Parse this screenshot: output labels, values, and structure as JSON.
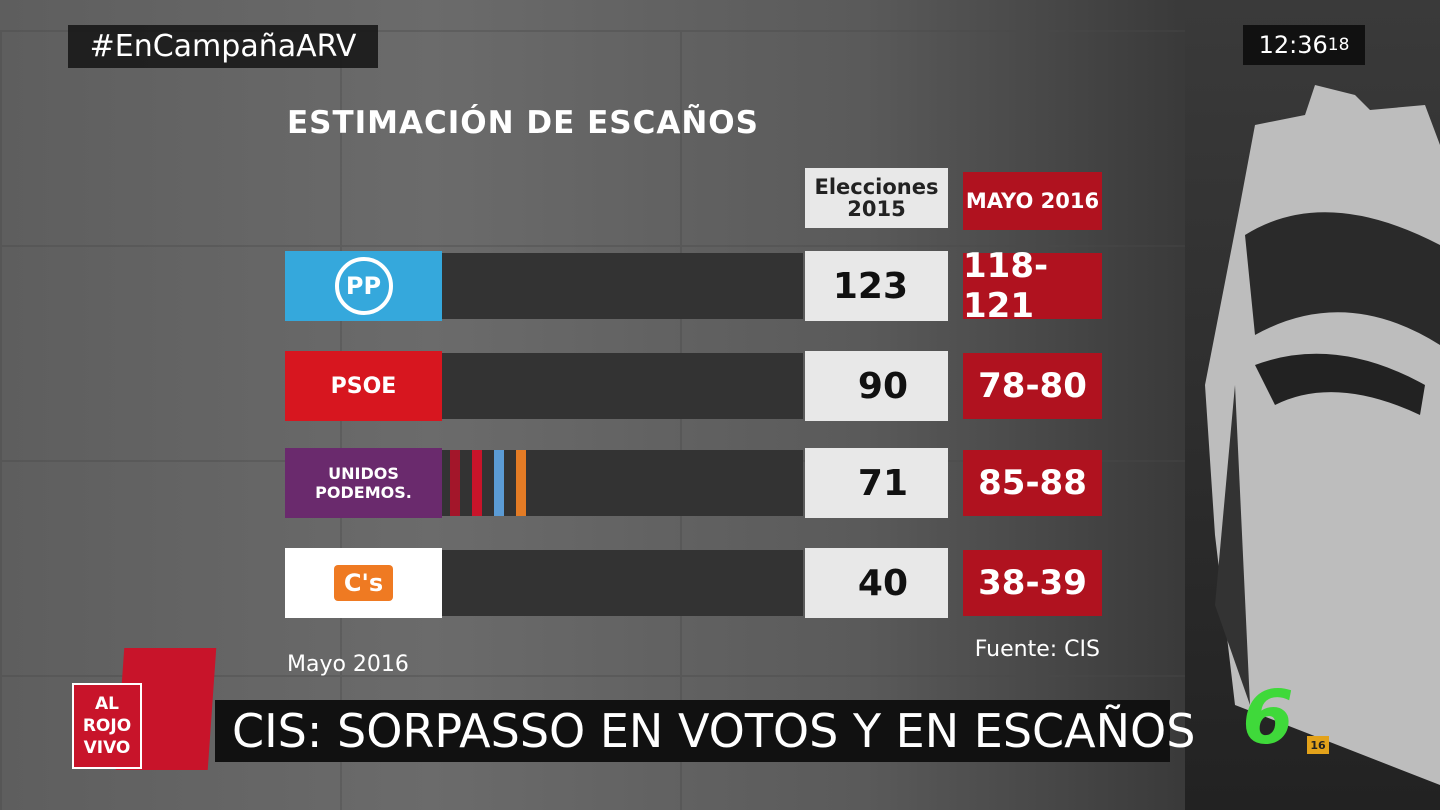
{
  "header": {
    "hashtag": "#EnCampañaARV",
    "clock": "12:36",
    "clock_seconds": "18",
    "title": "ESTIMACIÓN DE ESCAÑOS"
  },
  "table": {
    "columns": [
      "Elecciones 2015",
      "MAYO 2016"
    ],
    "rows": [
      {
        "party": "PP",
        "seats_2015": 123,
        "estimate_2016": "118-121"
      },
      {
        "party": "PSOE",
        "seats_2015": 90,
        "estimate_2016": "78-80"
      },
      {
        "party": "UNIDOS PODEMOS.",
        "seats_2015": 71,
        "estimate_2016": "85-88"
      },
      {
        "party": "C's",
        "seats_2015": 40,
        "estimate_2016": "38-39"
      }
    ]
  },
  "footer": {
    "date": "Mayo 2016",
    "source": "Fuente: CIS"
  },
  "ticker": {
    "show_logo": "AL ROJO VIVO",
    "headline": "CIS: SORPASSO EN VOTOS Y EN ESCAÑOS",
    "channel": "6",
    "rating": "16"
  }
}
